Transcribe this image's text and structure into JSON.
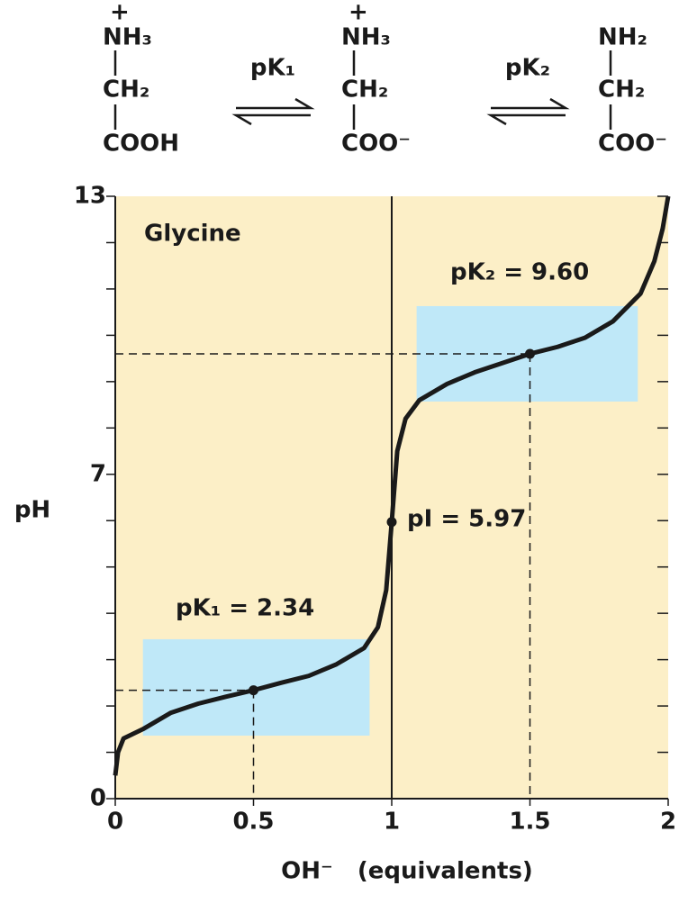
{
  "reaction": {
    "species": [
      {
        "charge": "+",
        "top": "NH₃",
        "middle": "CH₂",
        "bottom": "COOH"
      },
      {
        "charge": "+",
        "top": "NH₃",
        "middle": "CH₂",
        "bottom": "COO⁻"
      },
      {
        "top": "NH₂",
        "middle": "CH₂",
        "bottom": "COO⁻"
      }
    ],
    "arrows": [
      "pK₁",
      "pK₂"
    ]
  },
  "chart_data": {
    "type": "line",
    "title": "Glycine",
    "x": [
      0,
      0.01,
      0.03,
      0.1,
      0.2,
      0.3,
      0.4,
      0.5,
      0.6,
      0.7,
      0.8,
      0.9,
      0.95,
      0.98,
      1.0,
      1.02,
      1.05,
      1.1,
      1.2,
      1.3,
      1.4,
      1.5,
      1.6,
      1.7,
      1.8,
      1.9,
      1.95,
      1.98,
      2.0
    ],
    "series": [
      {
        "color": "#1a1a1a",
        "values": [
          0.5,
          1.0,
          1.3,
          1.5,
          1.85,
          2.05,
          2.2,
          2.34,
          2.5,
          2.65,
          2.9,
          3.25,
          3.7,
          4.5,
          5.97,
          7.5,
          8.2,
          8.6,
          8.95,
          9.2,
          9.4,
          9.6,
          9.75,
          9.95,
          10.3,
          10.9,
          11.6,
          12.3,
          13
        ]
      }
    ],
    "points": {
      "x": [
        0.5,
        1,
        1.5
      ],
      "y": [
        2.34,
        5.97,
        9.6
      ],
      "labels": [
        "pK₁ = 2.34",
        "pI = 5.97",
        "pK₂ = 9.60"
      ]
    },
    "buffer_regions": [
      {
        "x": [
          0.1,
          0.92
        ],
        "y": [
          1.36,
          3.44
        ]
      },
      {
        "x": [
          1.09,
          1.89
        ],
        "y": [
          8.57,
          10.63
        ]
      }
    ],
    "xlim": [
      0,
      2
    ],
    "ylim": [
      0,
      13
    ],
    "xticks": [
      0,
      0.5,
      1,
      1.5,
      2
    ],
    "yticks": [
      0,
      7,
      13
    ],
    "y_minor_ticks": [
      1,
      2,
      3,
      4,
      5,
      6,
      8,
      9,
      10,
      11,
      12
    ],
    "xlabel": "OH⁻   (equivalents)",
    "ylabel": "pH",
    "background": "#fcefc7",
    "region_color": "#bfe8f8"
  }
}
